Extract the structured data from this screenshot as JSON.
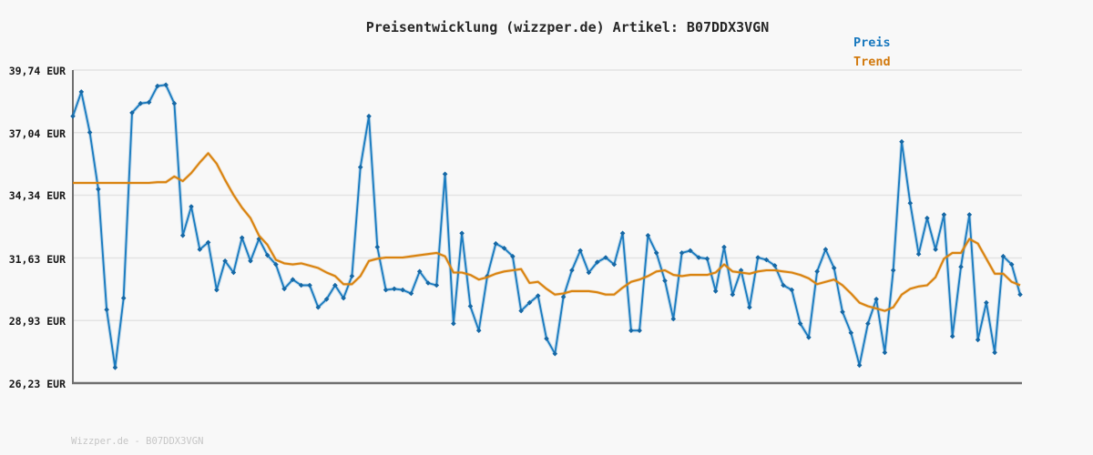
{
  "title": "Preisentwicklung (wizzper.de) Artikel: B07DDX3VGN",
  "legend": {
    "items": [
      {
        "label": "Preis",
        "color": "#1878be"
      },
      {
        "label": "Trend",
        "color": "#d2790d"
      }
    ]
  },
  "watermark": "Wizzper.de - B07DDX3VGN",
  "colors": {
    "background": "#f8f8f8",
    "grid": "#e3e3e3",
    "axis": "#6f6f6f",
    "price_line": "#1b7cc0",
    "price_marker": "#1668a5",
    "trend_line": "#d98310",
    "title_text": "#262626",
    "tick_text": "#161616",
    "watermark_text": "#c6c6c6"
  },
  "chart_data": {
    "type": "line",
    "title": "Preisentwicklung (wizzper.de) Artikel: B07DDX3VGN",
    "xlabel": "",
    "ylabel": "EUR",
    "ylim": [
      26.23,
      39.74
    ],
    "grid": true,
    "legend_position": "top-right",
    "y_ticks": [
      "39,74 EUR",
      "37,04 EUR",
      "34,34 EUR",
      "31,63 EUR",
      "28,93 EUR",
      "26,23 EUR"
    ],
    "y_tick_values": [
      39.74,
      37.04,
      34.34,
      31.63,
      28.93,
      26.23
    ],
    "series": [
      {
        "name": "Preis",
        "markers": true,
        "values": [
          37.75,
          38.8,
          37.05,
          34.6,
          29.4,
          26.9,
          29.9,
          37.9,
          38.3,
          38.35,
          39.05,
          39.1,
          38.3,
          32.6,
          33.85,
          32.0,
          32.3,
          30.25,
          31.5,
          31.0,
          32.5,
          31.5,
          32.45,
          31.75,
          31.35,
          30.3,
          30.7,
          30.45,
          30.45,
          29.5,
          29.85,
          30.45,
          29.9,
          30.85,
          35.55,
          37.75,
          32.1,
          30.25,
          30.3,
          30.25,
          30.1,
          31.05,
          30.55,
          30.45,
          35.25,
          28.8,
          32.7,
          29.55,
          28.5,
          30.85,
          32.25,
          32.05,
          31.7,
          29.35,
          29.7,
          30.0,
          28.15,
          27.5,
          29.95,
          31.1,
          31.95,
          31.0,
          31.45,
          31.65,
          31.35,
          32.7,
          28.5,
          28.5,
          32.6,
          31.85,
          30.65,
          29.0,
          31.85,
          31.95,
          31.65,
          31.6,
          30.2,
          32.1,
          30.05,
          31.1,
          29.5,
          31.65,
          31.55,
          31.3,
          30.45,
          30.25,
          28.8,
          28.2,
          31.05,
          32.0,
          31.2,
          29.3,
          28.4,
          27.0,
          28.8,
          29.85,
          27.55,
          31.1,
          36.65,
          34.0,
          31.8,
          33.35,
          32.0,
          33.5,
          28.25,
          31.25,
          33.5,
          28.1,
          29.7,
          27.55,
          31.7,
          31.35,
          30.05
        ]
      },
      {
        "name": "Trend",
        "markers": false,
        "values": [
          34.87,
          34.87,
          34.87,
          34.87,
          34.87,
          34.87,
          34.87,
          34.87,
          34.87,
          34.87,
          34.9,
          34.9,
          35.15,
          34.95,
          35.3,
          35.75,
          36.15,
          35.7,
          35.0,
          34.35,
          33.8,
          33.35,
          32.6,
          32.2,
          31.55,
          31.4,
          31.35,
          31.4,
          31.3,
          31.2,
          31.0,
          30.85,
          30.5,
          30.5,
          30.85,
          31.5,
          31.6,
          31.65,
          31.65,
          31.65,
          31.7,
          31.75,
          31.8,
          31.85,
          31.7,
          31.0,
          31.0,
          30.9,
          30.7,
          30.8,
          30.95,
          31.05,
          31.1,
          31.15,
          30.55,
          30.6,
          30.3,
          30.05,
          30.1,
          30.2,
          30.2,
          30.2,
          30.15,
          30.05,
          30.05,
          30.35,
          30.6,
          30.7,
          30.85,
          31.05,
          31.1,
          30.9,
          30.85,
          30.9,
          30.9,
          30.9,
          31.0,
          31.35,
          31.05,
          31.0,
          30.95,
          31.05,
          31.1,
          31.1,
          31.05,
          31.0,
          30.9,
          30.75,
          30.5,
          30.6,
          30.7,
          30.45,
          30.1,
          29.7,
          29.55,
          29.45,
          29.35,
          29.5,
          30.05,
          30.3,
          30.4,
          30.45,
          30.8,
          31.6,
          31.85,
          31.85,
          32.45,
          32.25,
          31.6,
          30.95,
          30.95,
          30.6,
          30.45
        ]
      }
    ]
  }
}
